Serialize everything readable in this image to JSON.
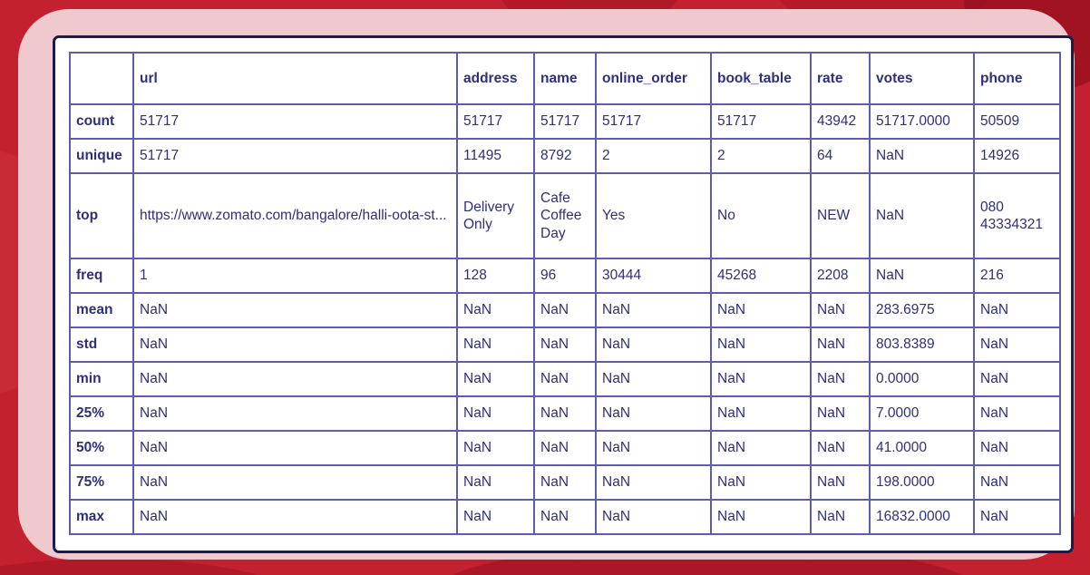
{
  "colors": {
    "background_red": "#c42130",
    "background_red_dark": "#9f1322",
    "frame_pink": "#efc9cd",
    "card_border_navy": "#1a1b4e",
    "card_background": "#ffffff",
    "table_border_purple": "#5d5dab",
    "text_navy": "#2e2f7d"
  },
  "chart_data": {
    "type": "table",
    "title": "",
    "columns": [
      "",
      "url",
      "address",
      "name",
      "online_order",
      "book_table",
      "rate",
      "votes",
      "phone"
    ],
    "rows": [
      {
        "label": "count",
        "values": [
          "51717",
          "51717",
          "51717",
          "51717",
          "51717",
          "43942",
          "51717.0000",
          "50509"
        ]
      },
      {
        "label": "unique",
        "values": [
          "51717",
          "11495",
          "8792",
          "2",
          "2",
          "64",
          "NaN",
          "14926"
        ]
      },
      {
        "label": "top",
        "values": [
          "https://www.zomato.com/bangalore/halli-oota-st...",
          "Delivery Only",
          "Cafe Coffee Day",
          "Yes",
          "No",
          "NEW",
          "NaN",
          "080 43334321"
        ]
      },
      {
        "label": "freq",
        "values": [
          "1",
          "128",
          "96",
          "30444",
          "45268",
          "2208",
          "NaN",
          "216"
        ]
      },
      {
        "label": "mean",
        "values": [
          "NaN",
          "NaN",
          "NaN",
          "NaN",
          "NaN",
          "NaN",
          "283.6975",
          "NaN"
        ]
      },
      {
        "label": "std",
        "values": [
          "NaN",
          "NaN",
          "NaN",
          "NaN",
          "NaN",
          "NaN",
          "803.8389",
          "NaN"
        ]
      },
      {
        "label": "min",
        "values": [
          "NaN",
          "NaN",
          "NaN",
          "NaN",
          "NaN",
          "NaN",
          "0.0000",
          "NaN"
        ]
      },
      {
        "label": "25%",
        "values": [
          "NaN",
          "NaN",
          "NaN",
          "NaN",
          "NaN",
          "NaN",
          "7.0000",
          "NaN"
        ]
      },
      {
        "label": "50%",
        "values": [
          "NaN",
          "NaN",
          "NaN",
          "NaN",
          "NaN",
          "NaN",
          "41.0000",
          "NaN"
        ]
      },
      {
        "label": "75%",
        "values": [
          "NaN",
          "NaN",
          "NaN",
          "NaN",
          "NaN",
          "NaN",
          "198.0000",
          "NaN"
        ]
      },
      {
        "label": "max",
        "values": [
          "NaN",
          "NaN",
          "NaN",
          "NaN",
          "NaN",
          "NaN",
          "16832.0000",
          "NaN"
        ]
      }
    ]
  }
}
